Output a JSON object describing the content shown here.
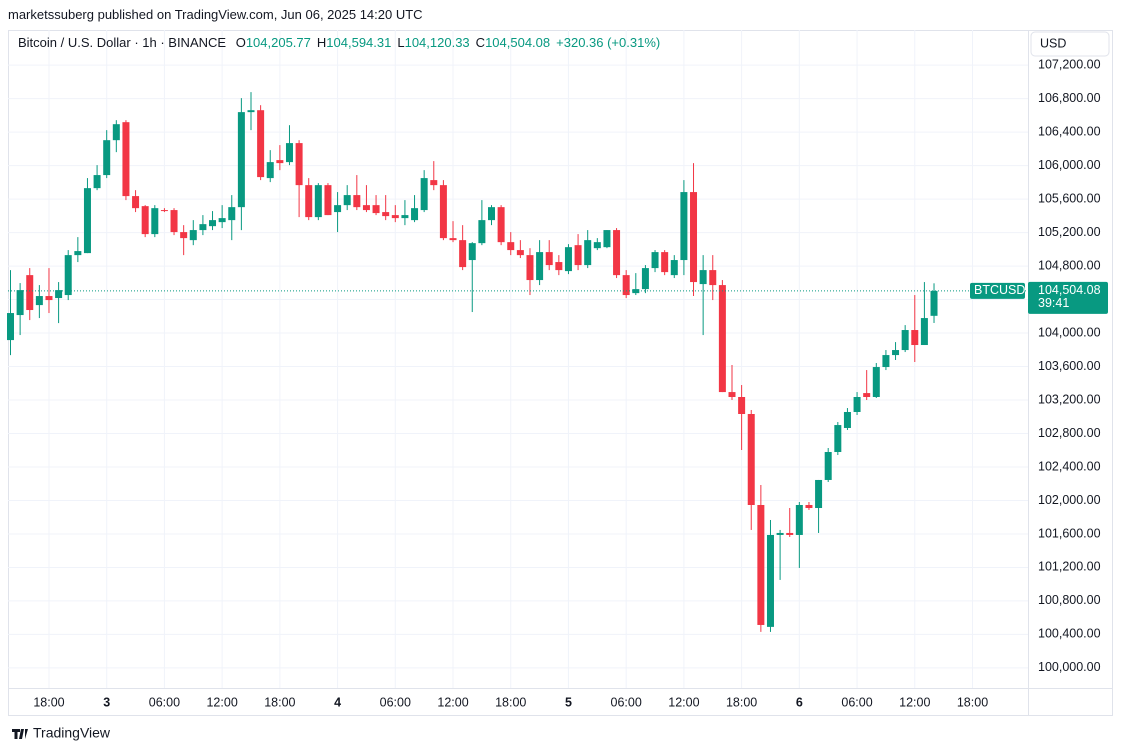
{
  "header": {
    "publisher": "marketssuberg published on TradingView.com, Jun 06, 2025 14:20 UTC",
    "symbol": "Bitcoin / U.S. Dollar · 1h · BINANCE",
    "ohlc": [
      {
        "key": "O",
        "value": "104,205.77"
      },
      {
        "key": "H",
        "value": "104,594.31"
      },
      {
        "key": "L",
        "value": "104,120.33"
      },
      {
        "key": "C",
        "value": "104,504.08"
      }
    ],
    "change": "+320.36 (+0.31%)"
  },
  "currency": "USD",
  "footer": "TradingView",
  "chart_data": {
    "type": "candlestick",
    "categories": [
      null,
      null,
      null,
      null,
      "18:00",
      null,
      null,
      null,
      null,
      null,
      "3",
      null,
      null,
      null,
      null,
      null,
      "06:00",
      null,
      null,
      null,
      null,
      null,
      "12:00",
      null,
      null,
      null,
      null,
      null,
      "18:00",
      null,
      null,
      null,
      null,
      null,
      "4",
      null,
      null,
      null,
      null,
      null,
      "06:00",
      null,
      null,
      null,
      null,
      null,
      "12:00",
      null,
      null,
      null,
      null,
      null,
      "18:00",
      null,
      null,
      null,
      null,
      null,
      "5",
      null,
      null,
      null,
      null,
      null,
      "06:00",
      null,
      null,
      null,
      null,
      null,
      "12:00",
      null,
      null,
      null,
      null,
      null,
      "18:00",
      null,
      null,
      null,
      null,
      null,
      "6",
      null,
      null,
      null,
      null,
      null,
      "06:00",
      null,
      null,
      null,
      null,
      null,
      "12:00",
      null,
      null,
      null,
      null,
      null,
      "18:00",
      null,
      null,
      null,
      null
    ],
    "open": [
      103916,
      104215,
      104692,
      104334,
      104442,
      104418,
      104454,
      104931,
      104955,
      105731,
      105887,
      106304,
      106519,
      105636,
      105516,
      105182,
      105469,
      105469,
      105206,
      105110,
      105230,
      105277,
      105325,
      105349,
      105504,
      106639,
      106662,
      105851,
      106066,
      106042,
      106269,
      105767,
      105385,
      105767,
      105445,
      105528,
      105648,
      105528,
      105528,
      105445,
      105409,
      105373,
      105349,
      105469,
      105827,
      105767,
      105134,
      105110,
      104872,
      105074,
      105349,
      105504,
      105086,
      104991,
      104931,
      104633,
      104967,
      104848,
      104740,
      105050,
      104812,
      105014,
      105026,
      105230,
      104692,
      104477,
      104525,
      104776,
      104967,
      104692,
      104872,
      105684,
      104585,
      104752,
      104573,
      103295,
      103236,
      103033,
      101946,
      100490,
      101588,
      101612,
      101588,
      101946,
      101910,
      102245,
      102579,
      102866,
      103057,
      103283,
      103236,
      103594,
      103737,
      103797,
      104036,
      103857,
      104205.77,
      null,
      null,
      null,
      null,
      null,
      null,
      null,
      null
    ],
    "high": [
      104752,
      104597,
      104776,
      104573,
      104776,
      104609,
      104991,
      105146,
      105851,
      106006,
      106424,
      106543,
      106543,
      105707,
      105528,
      105528,
      105492,
      105492,
      105289,
      105349,
      105409,
      105457,
      105528,
      105648,
      106806,
      106878,
      106722,
      106185,
      106245,
      106483,
      106304,
      105851,
      105791,
      105791,
      105684,
      105767,
      105887,
      105767,
      105648,
      105648,
      105528,
      105588,
      105648,
      105946,
      106054,
      105827,
      105337,
      105289,
      105086,
      105588,
      105528,
      105528,
      105206,
      105110,
      105014,
      105110,
      105110,
      104931,
      105062,
      105182,
      105230,
      105134,
      105230,
      105254,
      104752,
      104716,
      104812,
      104991,
      104991,
      104931,
      105827,
      106030,
      104931,
      104931,
      104633,
      103618,
      103379,
      103081,
      102185,
      101767,
      101648,
      101910,
      101982,
      101982,
      102245,
      102627,
      102937,
      103104,
      103295,
      103558,
      103642,
      103797,
      103892,
      104095,
      104454,
      104609,
      104594.31,
      null,
      null,
      null,
      null,
      null,
      null,
      null,
      null
    ],
    "low": [
      103737,
      103976,
      104155,
      104179,
      104239,
      104119,
      104394,
      104848,
      104955,
      105707,
      105851,
      106161,
      105588,
      105445,
      105146,
      105146,
      105445,
      105170,
      104931,
      105050,
      105170,
      105230,
      105254,
      105110,
      105230,
      106424,
      105827,
      105803,
      105946,
      106006,
      105385,
      105349,
      105349,
      105409,
      105206,
      105469,
      105469,
      105445,
      105409,
      105349,
      105325,
      105289,
      105325,
      105445,
      105707,
      105110,
      105086,
      104752,
      104251,
      105050,
      105289,
      105050,
      104931,
      104896,
      104454,
      104573,
      104752,
      104692,
      104704,
      104752,
      104776,
      104991,
      105014,
      104657,
      104418,
      104454,
      104477,
      104728,
      104692,
      104657,
      104692,
      104442,
      103976,
      104394,
      103295,
      103200,
      102603,
      101648,
      100430,
      100430,
      101051,
      101564,
      101194,
      101887,
      101612,
      102221,
      102543,
      102842,
      103021,
      103200,
      103224,
      103558,
      103678,
      103773,
      103654,
      103857,
      104120.33,
      null,
      null,
      null,
      null,
      null,
      null,
      null,
      null
    ],
    "close": [
      104239,
      104513,
      104275,
      104442,
      104394,
      104513,
      104931,
      104979,
      105731,
      105887,
      106304,
      106495,
      105636,
      105492,
      105182,
      105492,
      105457,
      105206,
      105134,
      105230,
      105301,
      105349,
      105373,
      105504,
      106639,
      106662,
      105863,
      106042,
      106030,
      106269,
      105767,
      105385,
      105767,
      105409,
      105528,
      105648,
      105504,
      105469,
      105433,
      105397,
      105373,
      105409,
      105492,
      105851,
      105767,
      105134,
      105110,
      104788,
      105074,
      105349,
      105504,
      105086,
      104991,
      104931,
      104633,
      104967,
      104812,
      104752,
      105026,
      104812,
      105110,
      105086,
      105230,
      104692,
      104454,
      104525,
      104776,
      104967,
      104728,
      104872,
      105684,
      104609,
      104752,
      104573,
      103295,
      103236,
      103033,
      101946,
      100513,
      101588,
      101612,
      101588,
      101946,
      101910,
      102245,
      102579,
      102901,
      103057,
      103236,
      103236,
      103594,
      103737,
      103797,
      104036,
      103857,
      104179,
      104504.08,
      null,
      null,
      null,
      null,
      null,
      null,
      null,
      null
    ],
    "up_color": "#089981",
    "down_color": "#f23645",
    "ylim": [
      99760,
      107620
    ],
    "yticks": [
      {
        "value": 100000,
        "label": "100,000.00"
      },
      {
        "value": 100400,
        "label": "100,400.00"
      },
      {
        "value": 100800,
        "label": "100,800.00"
      },
      {
        "value": 101200,
        "label": "101,200.00"
      },
      {
        "value": 101600,
        "label": "101,600.00"
      },
      {
        "value": 102000,
        "label": "102,000.00"
      },
      {
        "value": 102400,
        "label": "102,400.00"
      },
      {
        "value": 102800,
        "label": "102,800.00"
      },
      {
        "value": 103200,
        "label": "103,200.00"
      },
      {
        "value": 103600,
        "label": "103,600.00"
      },
      {
        "value": 104000,
        "label": "104,000.00"
      },
      {
        "value": 104400,
        "label": "104,400.00"
      },
      {
        "value": 104800,
        "label": "104,800.00"
      },
      {
        "value": 105200,
        "label": "105,200.00"
      },
      {
        "value": 105600,
        "label": "105,600.00"
      },
      {
        "value": 106000,
        "label": "106,000.00"
      },
      {
        "value": 106400,
        "label": "106,400.00"
      },
      {
        "value": 106800,
        "label": "106,800.00"
      },
      {
        "value": 107200,
        "label": "107,200.00"
      }
    ],
    "grid": true,
    "last_price": {
      "ticker": "BTCUSD",
      "value": 104504.08,
      "label": "104,504.08",
      "countdown": "39:41"
    }
  }
}
